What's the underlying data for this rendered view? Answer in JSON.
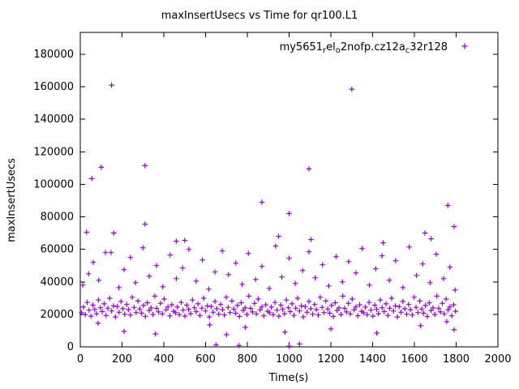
{
  "title": "maxInsertUsecs vs Time for qr100.L1",
  "x_label": "Time(s)",
  "y_label": "maxInsertUsecs",
  "legend": {
    "marker": "+",
    "segments": [
      {
        "text": "my5651",
        "sub": false
      },
      {
        "text": "r",
        "sub": true
      },
      {
        "text": "el",
        "sub": false
      },
      {
        "text": "o",
        "sub": true
      },
      {
        "text": "2nofp.cz12a",
        "sub": false
      },
      {
        "text": "c",
        "sub": true
      },
      {
        "text": "32r128",
        "sub": false
      }
    ]
  },
  "colors": {
    "series": "#9400d3",
    "axis": "#000000",
    "background": "#ffffff"
  },
  "chart_data": {
    "type": "scatter",
    "title": "maxInsertUsecs vs Time for qr100.L1",
    "xlabel": "Time(s)",
    "ylabel": "maxInsertUsecs",
    "xlim": [
      0,
      2000
    ],
    "ylim": [
      0,
      193500
    ],
    "x_ticks": [
      0,
      200,
      400,
      600,
      800,
      1000,
      1200,
      1400,
      1600,
      1800,
      2000
    ],
    "y_ticks": [
      0,
      20000,
      40000,
      60000,
      80000,
      100000,
      120000,
      140000,
      160000,
      180000
    ],
    "grid": false,
    "legend_position": "top-right-inside",
    "series": [
      {
        "name": "my5651_rel_o2nofp.cz12a_c32r128",
        "marker": "plus",
        "color": "#9400d3",
        "points": [
          [
            6,
            21000
          ],
          [
            15,
            24500
          ],
          [
            24,
            19800
          ],
          [
            33,
            27300
          ],
          [
            42,
            22600
          ],
          [
            51,
            18900
          ],
          [
            60,
            25700
          ],
          [
            69,
            23100
          ],
          [
            78,
            20400
          ],
          [
            87,
            28800
          ],
          [
            96,
            24100
          ],
          [
            105,
            21700
          ],
          [
            114,
            26500
          ],
          [
            123,
            19300
          ],
          [
            132,
            23800
          ],
          [
            141,
            29900
          ],
          [
            150,
            22100
          ],
          [
            159,
            25200
          ],
          [
            168,
            18400
          ],
          [
            177,
            24800
          ],
          [
            186,
            21300
          ],
          [
            195,
            27900
          ],
          [
            204,
            23500
          ],
          [
            213,
            20100
          ],
          [
            222,
            26100
          ],
          [
            231,
            22900
          ],
          [
            240,
            19600
          ],
          [
            249,
            30500
          ],
          [
            258,
            24300
          ],
          [
            267,
            21100
          ],
          [
            276,
            28200
          ],
          [
            285,
            23300
          ],
          [
            294,
            20700
          ],
          [
            303,
            25500
          ],
          [
            312,
            18700
          ],
          [
            321,
            27100
          ],
          [
            330,
            22400
          ],
          [
            339,
            24000
          ],
          [
            348,
            19900
          ],
          [
            357,
            31200
          ],
          [
            366,
            23700
          ],
          [
            375,
            21500
          ],
          [
            384,
            26800
          ],
          [
            393,
            20300
          ],
          [
            402,
            29400
          ],
          [
            411,
            22800
          ],
          [
            420,
            24600
          ],
          [
            429,
            19100
          ],
          [
            438,
            25900
          ],
          [
            447,
            21900
          ],
          [
            456,
            21000
          ],
          [
            465,
            24500
          ],
          [
            474,
            19800
          ],
          [
            483,
            27300
          ],
          [
            492,
            22600
          ],
          [
            501,
            18900
          ],
          [
            510,
            25700
          ],
          [
            519,
            23100
          ],
          [
            528,
            20400
          ],
          [
            537,
            28800
          ],
          [
            546,
            24100
          ],
          [
            555,
            21700
          ],
          [
            564,
            26500
          ],
          [
            573,
            19300
          ],
          [
            582,
            23800
          ],
          [
            591,
            29900
          ],
          [
            600,
            22100
          ],
          [
            609,
            25200
          ],
          [
            618,
            18400
          ],
          [
            627,
            24800
          ],
          [
            636,
            21300
          ],
          [
            645,
            27900
          ],
          [
            654,
            23500
          ],
          [
            663,
            20100
          ],
          [
            672,
            26100
          ],
          [
            681,
            22900
          ],
          [
            690,
            19600
          ],
          [
            699,
            30500
          ],
          [
            708,
            24300
          ],
          [
            717,
            21100
          ],
          [
            726,
            28200
          ],
          [
            735,
            23300
          ],
          [
            744,
            20700
          ],
          [
            753,
            25500
          ],
          [
            762,
            18700
          ],
          [
            771,
            27100
          ],
          [
            780,
            22400
          ],
          [
            789,
            24000
          ],
          [
            798,
            19900
          ],
          [
            807,
            31200
          ],
          [
            816,
            23700
          ],
          [
            825,
            21500
          ],
          [
            834,
            26800
          ],
          [
            843,
            20300
          ],
          [
            852,
            29400
          ],
          [
            861,
            22800
          ],
          [
            870,
            24600
          ],
          [
            879,
            19100
          ],
          [
            888,
            25900
          ],
          [
            897,
            21900
          ],
          [
            906,
            21000
          ],
          [
            915,
            24500
          ],
          [
            924,
            19800
          ],
          [
            933,
            27300
          ],
          [
            942,
            22600
          ],
          [
            951,
            18900
          ],
          [
            960,
            25700
          ],
          [
            969,
            23100
          ],
          [
            978,
            20400
          ],
          [
            987,
            28800
          ],
          [
            996,
            24100
          ],
          [
            1005,
            21700
          ],
          [
            1014,
            26500
          ],
          [
            1023,
            19300
          ],
          [
            1032,
            23800
          ],
          [
            1041,
            29900
          ],
          [
            1050,
            22100
          ],
          [
            1059,
            25200
          ],
          [
            1068,
            18400
          ],
          [
            1077,
            24800
          ],
          [
            1086,
            21300
          ],
          [
            1095,
            27900
          ],
          [
            1104,
            23500
          ],
          [
            1113,
            20100
          ],
          [
            1122,
            26100
          ],
          [
            1131,
            22900
          ],
          [
            1140,
            19600
          ],
          [
            1149,
            30500
          ],
          [
            1158,
            24300
          ],
          [
            1167,
            21100
          ],
          [
            1176,
            28200
          ],
          [
            1185,
            23300
          ],
          [
            1194,
            20700
          ],
          [
            1203,
            25500
          ],
          [
            1212,
            18700
          ],
          [
            1221,
            27100
          ],
          [
            1230,
            22400
          ],
          [
            1239,
            24000
          ],
          [
            1248,
            19900
          ],
          [
            1257,
            31200
          ],
          [
            1266,
            23700
          ],
          [
            1275,
            21500
          ],
          [
            1284,
            26800
          ],
          [
            1293,
            20300
          ],
          [
            1302,
            29400
          ],
          [
            1311,
            22800
          ],
          [
            1320,
            24600
          ],
          [
            1329,
            19100
          ],
          [
            1338,
            25900
          ],
          [
            1347,
            21900
          ],
          [
            1356,
            21000
          ],
          [
            1365,
            24500
          ],
          [
            1374,
            19800
          ],
          [
            1383,
            27300
          ],
          [
            1392,
            22600
          ],
          [
            1401,
            18900
          ],
          [
            1410,
            25700
          ],
          [
            1419,
            23100
          ],
          [
            1428,
            20400
          ],
          [
            1437,
            28800
          ],
          [
            1446,
            24100
          ],
          [
            1455,
            21700
          ],
          [
            1464,
            26500
          ],
          [
            1473,
            19300
          ],
          [
            1482,
            23800
          ],
          [
            1491,
            29900
          ],
          [
            1500,
            22100
          ],
          [
            1509,
            25200
          ],
          [
            1518,
            18400
          ],
          [
            1527,
            24800
          ],
          [
            1536,
            21300
          ],
          [
            1545,
            27900
          ],
          [
            1554,
            23500
          ],
          [
            1563,
            20100
          ],
          [
            1572,
            26100
          ],
          [
            1581,
            22900
          ],
          [
            1590,
            19600
          ],
          [
            1599,
            30500
          ],
          [
            1608,
            24300
          ],
          [
            1617,
            21100
          ],
          [
            1626,
            28200
          ],
          [
            1635,
            23300
          ],
          [
            1644,
            20700
          ],
          [
            1653,
            25500
          ],
          [
            1662,
            18700
          ],
          [
            1671,
            27100
          ],
          [
            1680,
            22400
          ],
          [
            1689,
            24000
          ],
          [
            1698,
            19900
          ],
          [
            1707,
            31200
          ],
          [
            1716,
            23700
          ],
          [
            1725,
            21500
          ],
          [
            1734,
            26800
          ],
          [
            1743,
            20300
          ],
          [
            1752,
            29400
          ],
          [
            1761,
            22800
          ],
          [
            1770,
            24600
          ],
          [
            1779,
            19100
          ],
          [
            1788,
            25900
          ],
          [
            1797,
            21900
          ],
          [
            12,
            38000
          ],
          [
            40,
            45000
          ],
          [
            62,
            52000
          ],
          [
            88,
            41000
          ],
          [
            120,
            58000
          ],
          [
            148,
            58000
          ],
          [
            185,
            36500
          ],
          [
            210,
            47500
          ],
          [
            240,
            55000
          ],
          [
            265,
            39500
          ],
          [
            300,
            61000
          ],
          [
            330,
            43500
          ],
          [
            365,
            50000
          ],
          [
            395,
            37000
          ],
          [
            430,
            56500
          ],
          [
            460,
            42000
          ],
          [
            490,
            48500
          ],
          [
            520,
            60000
          ],
          [
            555,
            40500
          ],
          [
            585,
            53500
          ],
          [
            615,
            35500
          ],
          [
            645,
            46000
          ],
          [
            680,
            59000
          ],
          [
            710,
            44500
          ],
          [
            745,
            51500
          ],
          [
            775,
            38500
          ],
          [
            805,
            57500
          ],
          [
            840,
            41500
          ],
          [
            870,
            49500
          ],
          [
            905,
            36000
          ],
          [
            935,
            62000
          ],
          [
            965,
            43000
          ],
          [
            1000,
            54500
          ],
          [
            1030,
            39000
          ],
          [
            1065,
            47000
          ],
          [
            1095,
            58500
          ],
          [
            1125,
            42500
          ],
          [
            1160,
            50500
          ],
          [
            1190,
            37500
          ],
          [
            1225,
            55500
          ],
          [
            1255,
            40000
          ],
          [
            1285,
            52500
          ],
          [
            1320,
            45500
          ],
          [
            1350,
            60500
          ],
          [
            1385,
            38000
          ],
          [
            1415,
            48000
          ],
          [
            1445,
            56000
          ],
          [
            1480,
            41000
          ],
          [
            1510,
            53000
          ],
          [
            1545,
            36500
          ],
          [
            1575,
            61500
          ],
          [
            1610,
            44000
          ],
          [
            1640,
            51000
          ],
          [
            1675,
            39500
          ],
          [
            1705,
            57000
          ],
          [
            1740,
            42000
          ],
          [
            1770,
            49000
          ],
          [
            1795,
            35000
          ],
          [
            30,
            70500
          ],
          [
            160,
            70000
          ],
          [
            310,
            75500
          ],
          [
            460,
            65000
          ],
          [
            500,
            65500
          ],
          [
            870,
            89000
          ],
          [
            950,
            68000
          ],
          [
            1000,
            82000
          ],
          [
            1105,
            66000
          ],
          [
            1450,
            64000
          ],
          [
            1650,
            70000
          ],
          [
            1680,
            66500
          ],
          [
            1760,
            87000
          ],
          [
            1790,
            74000
          ],
          [
            55,
            103500
          ],
          [
            100,
            110500
          ],
          [
            150,
            161000
          ],
          [
            310,
            111500
          ],
          [
            1095,
            109500
          ],
          [
            1300,
            158500
          ],
          [
            210,
            9500
          ],
          [
            360,
            8000
          ],
          [
            620,
            13500
          ],
          [
            700,
            7500
          ],
          [
            790,
            12000
          ],
          [
            980,
            9000
          ],
          [
            1200,
            11000
          ],
          [
            1420,
            8500
          ],
          [
            1630,
            13000
          ],
          [
            1755,
            15500
          ],
          [
            85,
            14500
          ],
          [
            1790,
            10500
          ],
          [
            650,
            1200
          ],
          [
            760,
            800
          ],
          [
            1000,
            400
          ],
          [
            1050,
            1800
          ]
        ]
      }
    ]
  }
}
